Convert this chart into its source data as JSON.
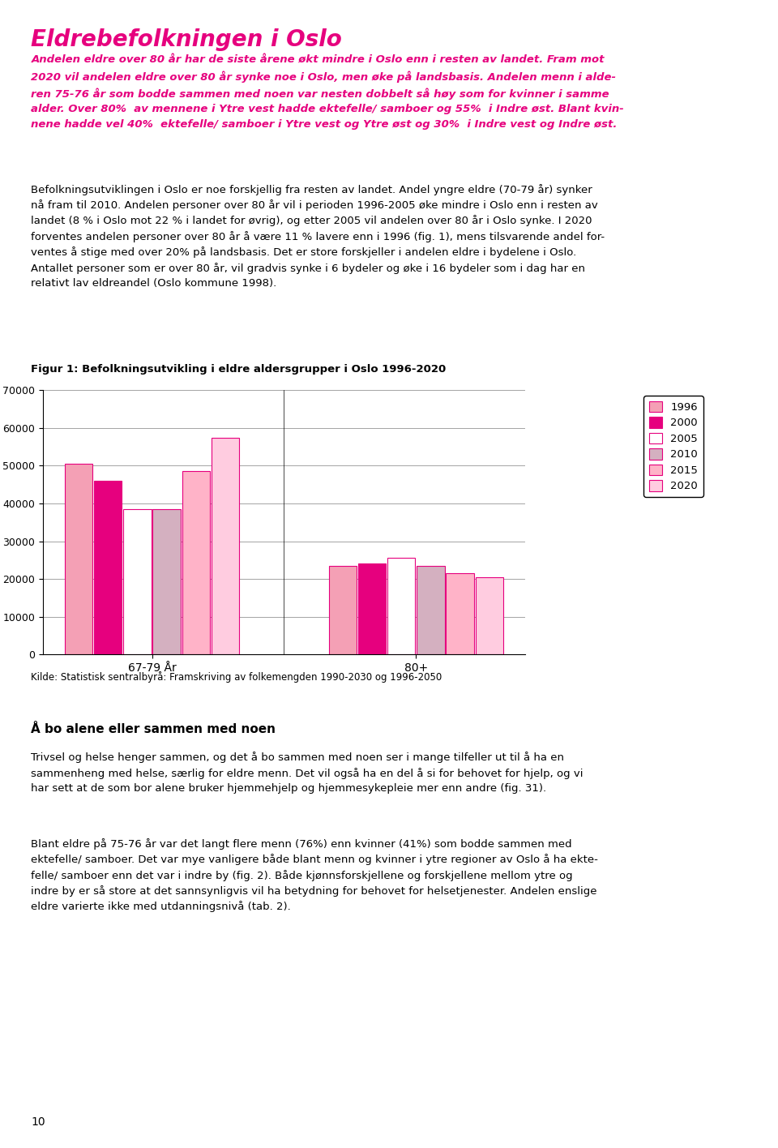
{
  "page_title": "Eldrebefolkningen i Oslo",
  "page_title_color": "#e6007e",
  "intro_text_color": "#e6007e",
  "intro_text": "Andelen eldre over 80 år har de siste årene økt mindre i Oslo enn i resten av landet. Fram mot 2020 vil andelen eldre over 80 år synke noe i Oslo, men øke på landsbasis. Andelen menn i aldre-ren 75-76 år som bodde sammen med noen var nesten dobbelt så høy som for kvinner i samme alder. Over 80%  av mennene i Ytre vest hadde ektefelle/ samboer og 55%  i Indre øst. Blant kvin-nene hadde vel 40%  ektefelle/ samboer i Ytre vest og Ytre øst og 30%  i Indre vest og Indre øst.",
  "body_text1": "Befolkningsutviklingen i Oslo er noe forskjellig fra resten av landet. Andel yngre eldre (70-79 år) synker nå fram til 2010. Andelen personer over 80 år vil i perioden 1996-2005 øke mindre i Oslo enn i resten av landet (8 % i Oslo mot 22 % i landet for øvrig), og etter 2005 vil andelen over 80 år i Oslo synke. I 2020 forventes andelen personer over 80 år å være 11 % lavere enn i 1996 (fig. 1), mens tilsvarende andel for-ventes å stige med over 20% på landsbasis. Det er store forskjeller i andelen eldre i bydelene i Oslo. Antallet personer som er over 80 år, vil gradvis synke i 6 bydeler og øke i 16 bydeler som i dag har en relativt lav eldreandel (Oslo kommune 1998).",
  "fig_title": "Figur 1: Befolkningsutvikling i eldre aldersgrupper i Oslo 1996-2020",
  "source_text": "Kilde: Statistisk sentralbyrå: Framskriving av folkemengden 1990-2030 og 1996-2050",
  "section_title": "Å bo alene eller sammen med noen",
  "body_text2": "Trivsel og helse henger sammen, og det å bo sammen med noen ser i mange tilfeller ut til å ha en sammenheng med helse, særlig for eldre menn. Det vil også ha en del å si for behovet for hjelp, og vi har sett at de som bor alene bruker hjemmehjelp og hjemmesykepleie mer enn andre (fig. 31).",
  "body_text3": "Blant eldre på 75-76 år var det langt flere menn (76%) enn kvinner (41%) som bodde sammen med ektefelle/ samboer. Det var mye vanligere både blant menn og kvinner i ytre regioner av Oslo å ha ekte-felle/ samboer enn det var i indre by (fig. 2). Både kjønnsforskjellene og forskjellene mellom ytre og indre by er så store at det sannsynligvis vil ha betydning for behovet for helsetjenester. Andelen enslige eldre varierte ikke med utdanningsnivå (tab. 2).",
  "page_number": "10",
  "categories": [
    "67-79 År",
    "80+"
  ],
  "years": [
    "1996",
    "2000",
    "2005",
    "2010",
    "2015",
    "2020"
  ],
  "values_67_79": [
    50500,
    46000,
    38500,
    38500,
    48500,
    57500
  ],
  "values_80plus": [
    23500,
    24000,
    25500,
    23500,
    21500,
    20500
  ],
  "bar_colors": [
    "#f4a0b5",
    "#e6007e",
    "#ffffff",
    "#d4b0c0",
    "#ffb3c8",
    "#ffcce0"
  ],
  "bar_edgecolors": [
    "#e6007e",
    "#e6007e",
    "#e6007e",
    "#e6007e",
    "#e6007e",
    "#e6007e"
  ],
  "ylim": [
    0,
    70000
  ],
  "yticks": [
    0,
    10000,
    20000,
    30000,
    40000,
    50000,
    60000,
    70000
  ],
  "legend_colors_fill": [
    "#f4a0b5",
    "#e6007e",
    "#ffffff",
    "#d4b0c0",
    "#ffb3c8",
    "#ffcce0"
  ],
  "legend_edge_colors": [
    "#e6007e",
    "#e6007e",
    "#e6007e",
    "#e6007e",
    "#e6007e",
    "#e6007e"
  ]
}
